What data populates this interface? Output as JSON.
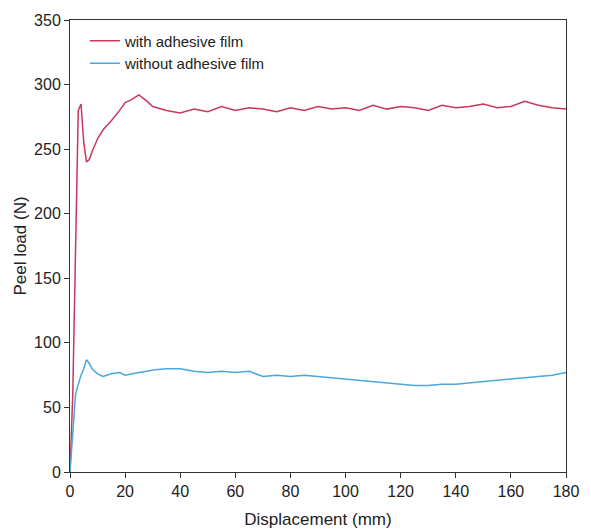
{
  "chart_data": {
    "type": "line",
    "x_label": "Displacement (mm)",
    "y_label": "Peel load (N)",
    "x": [
      0,
      1,
      2,
      3,
      4,
      5,
      6,
      7,
      8,
      10,
      12,
      15,
      18,
      20,
      22,
      25,
      28,
      30,
      35,
      40,
      45,
      50,
      55,
      60,
      65,
      70,
      75,
      80,
      85,
      90,
      95,
      100,
      105,
      110,
      115,
      120,
      125,
      130,
      135,
      140,
      145,
      150,
      155,
      160,
      165,
      170,
      175,
      180
    ],
    "series": [
      {
        "name": "with adhesive film",
        "color": "#c8385a",
        "values": [
          0,
          60,
          170,
          280,
          285,
          255,
          240,
          242,
          248,
          258,
          265,
          272,
          280,
          286,
          288,
          292,
          287,
          283,
          280,
          278,
          281,
          279,
          283,
          280,
          282,
          281,
          279,
          282,
          280,
          283,
          281,
          282,
          280,
          284,
          281,
          283,
          282,
          280,
          284,
          282,
          283,
          285,
          282,
          283,
          287,
          284,
          282,
          281
        ]
      },
      {
        "name": "without adhesive film",
        "color": "#4aa8d8",
        "values": [
          0,
          30,
          60,
          68,
          75,
          80,
          87,
          84,
          80,
          76,
          74,
          76,
          77,
          75,
          76,
          77,
          78,
          79,
          80,
          80,
          78,
          77,
          78,
          77,
          78,
          74,
          75,
          74,
          75,
          74,
          73,
          72,
          71,
          70,
          69,
          68,
          67,
          67,
          68,
          68,
          69,
          70,
          71,
          72,
          73,
          74,
          75,
          77
        ]
      }
    ],
    "xlim": [
      0,
      180
    ],
    "xticks": [
      0,
      20,
      40,
      60,
      80,
      100,
      120,
      140,
      160,
      180
    ],
    "ylim": [
      0,
      350
    ],
    "yticks": [
      0,
      50,
      100,
      150,
      200,
      250,
      300,
      350
    ],
    "legend": "top left",
    "grid": false
  }
}
